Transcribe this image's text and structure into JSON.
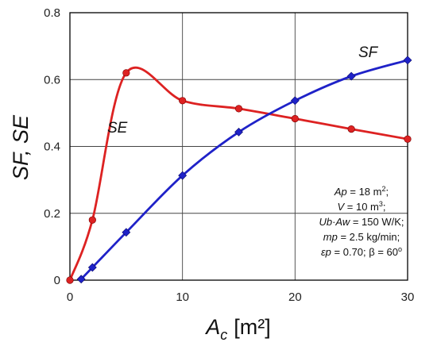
{
  "chart_data": {
    "type": "line",
    "xlabel_base": "A",
    "xlabel_sub": "c",
    "xlabel_unit": "[m²]",
    "ylabel": "SF, SE",
    "xlim": [
      0,
      30
    ],
    "ylim": [
      0,
      0.8
    ],
    "xticks": [
      "0",
      "10",
      "20",
      "30"
    ],
    "yticks": [
      "0",
      "0.2",
      "0.4",
      "0.6",
      "0.8"
    ],
    "grid": true,
    "series": [
      {
        "name": "SE",
        "color": "#dd2222",
        "marker": "circle",
        "x": [
          0,
          2,
          5,
          10,
          15,
          20,
          25,
          30
        ],
        "y": [
          0.0,
          0.18,
          0.62,
          0.537,
          0.513,
          0.483,
          0.452,
          0.422
        ]
      },
      {
        "name": "SF",
        "color": "#1f22c8",
        "marker": "diamond",
        "x": [
          1,
          2,
          5,
          10,
          15,
          20,
          25,
          30
        ],
        "y": [
          0.003,
          0.038,
          0.143,
          0.313,
          0.443,
          0.537,
          0.61,
          0.658
        ]
      }
    ],
    "annotation": {
      "lines": [
        {
          "a": "Ap",
          "b": " = 18 m",
          "sup": "2",
          "c": ";"
        },
        {
          "a": "V",
          "b": " = 10 m",
          "sup": "3",
          "c": ";"
        },
        {
          "a": "Ub·Aw",
          "b": " = 150 W/K;",
          "sup": "",
          "c": ""
        },
        {
          "a": "mp",
          "b": " = 2.5 kg/min;",
          "sup": "",
          "c": ""
        },
        {
          "a": "εp",
          "b": " = 0.70;  β = 60",
          "sup": "o",
          "c": ""
        }
      ]
    }
  }
}
